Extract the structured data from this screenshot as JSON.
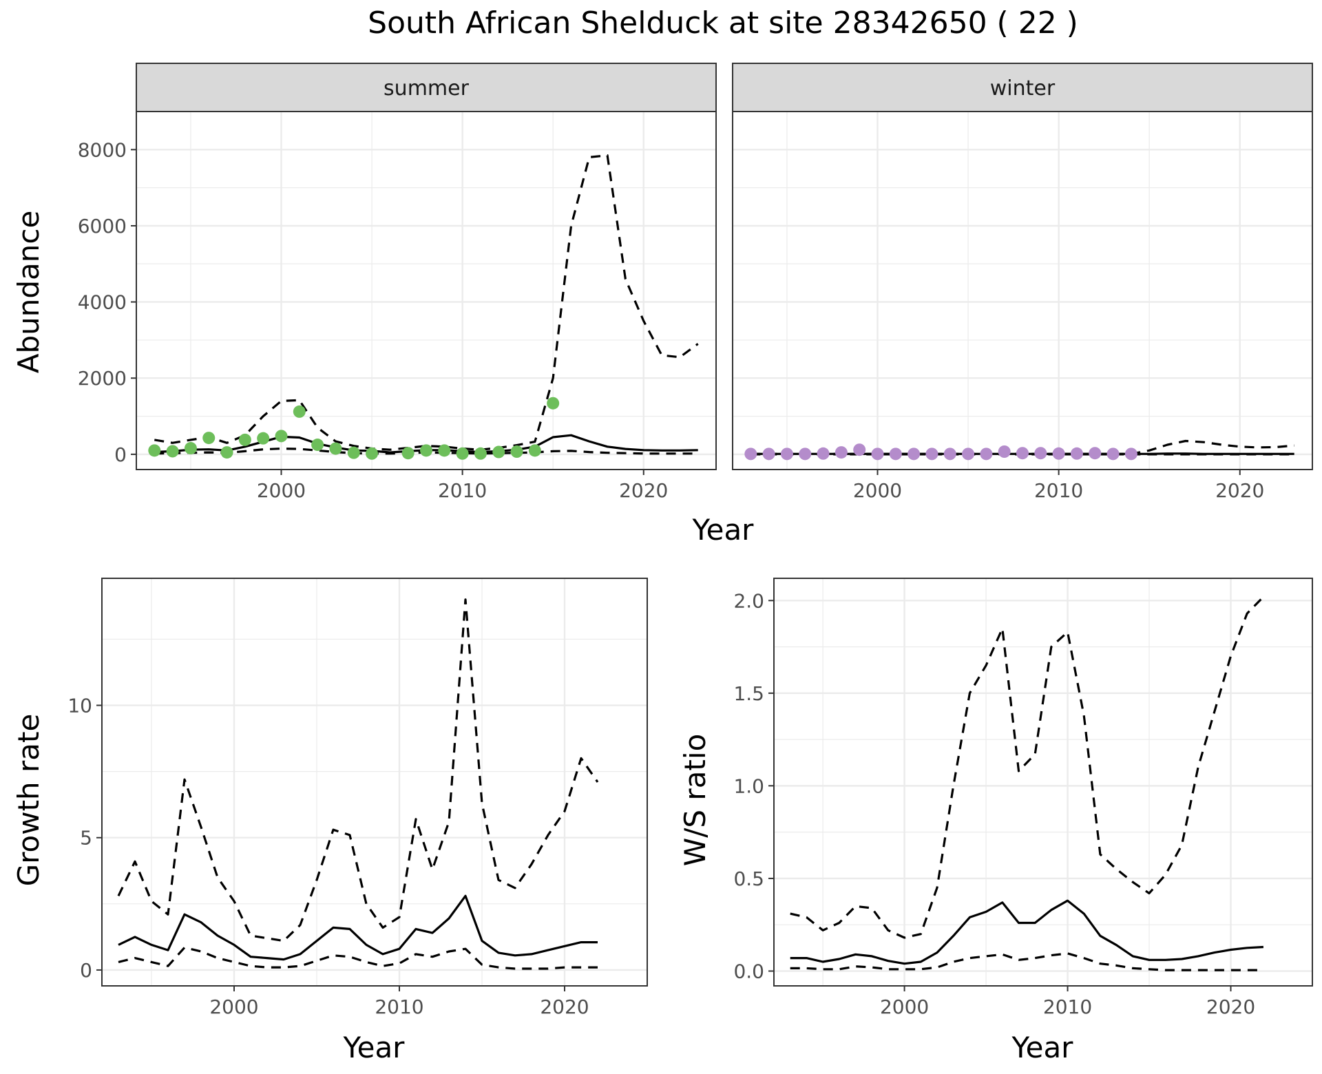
{
  "title": "South African Shelduck at site 28342650 ( 22 )",
  "colors": {
    "summer_points": "#6dbe5a",
    "winter_points": "#b48ccb",
    "line": "#000000",
    "grid": "#ebebeb",
    "strip_bg": "#d9d9d9",
    "panel_border": "#333333"
  },
  "chart_data": [
    {
      "type": "line",
      "title": "",
      "panels": [
        "summer",
        "winter"
      ],
      "xlabel": "Year",
      "ylabel": "Abundance",
      "xlim": [
        1992,
        2024
      ],
      "ylim": [
        -400,
        9000
      ],
      "xticks": [
        2000,
        2010,
        2020
      ],
      "yticks": [
        0,
        2000,
        4000,
        6000,
        8000
      ],
      "x": [
        1993,
        1994,
        1995,
        1996,
        1997,
        1998,
        1999,
        2000,
        2001,
        2002,
        2003,
        2004,
        2005,
        2006,
        2007,
        2008,
        2009,
        2010,
        2011,
        2012,
        2013,
        2014,
        2015,
        2016,
        2017,
        2018,
        2019,
        2020,
        2021,
        2022,
        2023
      ],
      "summer": {
        "estimate": [
          60,
          80,
          120,
          130,
          100,
          200,
          330,
          460,
          440,
          280,
          180,
          100,
          90,
          50,
          80,
          110,
          110,
          80,
          60,
          80,
          120,
          200,
          450,
          500,
          340,
          200,
          140,
          110,
          100,
          100,
          110
        ],
        "lower": [
          20,
          30,
          40,
          50,
          40,
          80,
          130,
          150,
          140,
          100,
          60,
          30,
          20,
          20,
          30,
          50,
          40,
          30,
          20,
          30,
          40,
          50,
          80,
          90,
          60,
          40,
          30,
          20,
          20,
          20,
          20
        ],
        "upper": [
          380,
          300,
          380,
          450,
          300,
          500,
          1000,
          1400,
          1420,
          700,
          340,
          220,
          150,
          120,
          170,
          220,
          200,
          150,
          120,
          170,
          240,
          330,
          2000,
          6000,
          7800,
          7850,
          4600,
          3500,
          2600,
          2550,
          2900
        ],
        "obs_x": [
          1993,
          1994,
          1995,
          1996,
          1997,
          1998,
          1999,
          2000,
          2001,
          2002,
          2003,
          2004,
          2005,
          2007,
          2008,
          2009,
          2010,
          2011,
          2012,
          2013,
          2014,
          2015
        ],
        "obs_y": [
          100,
          80,
          160,
          430,
          50,
          380,
          420,
          480,
          1120,
          250,
          150,
          40,
          20,
          30,
          100,
          100,
          20,
          20,
          60,
          70,
          100,
          1340
        ]
      },
      "winter": {
        "estimate": [
          10,
          10,
          10,
          10,
          10,
          10,
          10,
          10,
          10,
          10,
          10,
          10,
          10,
          10,
          10,
          10,
          10,
          10,
          10,
          10,
          10,
          10,
          10,
          20,
          20,
          10,
          10,
          10,
          10,
          10,
          10
        ],
        "lower": [
          0,
          0,
          0,
          0,
          0,
          0,
          0,
          0,
          0,
          0,
          0,
          0,
          0,
          0,
          0,
          0,
          0,
          0,
          0,
          0,
          0,
          0,
          0,
          0,
          0,
          0,
          0,
          0,
          0,
          0,
          0
        ],
        "upper": [
          10,
          10,
          10,
          10,
          10,
          10,
          10,
          10,
          10,
          10,
          10,
          10,
          10,
          10,
          10,
          10,
          10,
          10,
          10,
          10,
          10,
          10,
          100,
          250,
          350,
          320,
          250,
          200,
          180,
          190,
          230
        ],
        "obs_x": [
          1993,
          1994,
          1995,
          1996,
          1997,
          1998,
          1999,
          2000,
          2001,
          2002,
          2003,
          2004,
          2005,
          2006,
          2007,
          2008,
          2009,
          2010,
          2011,
          2012,
          2013,
          2014
        ],
        "obs_y": [
          10,
          10,
          10,
          10,
          20,
          50,
          120,
          10,
          10,
          10,
          10,
          10,
          10,
          10,
          70,
          30,
          30,
          20,
          20,
          30,
          10,
          10
        ]
      }
    },
    {
      "type": "line",
      "title": "",
      "xlabel": "Year",
      "ylabel": "Growth rate",
      "xlim": [
        1992,
        2025
      ],
      "ylim": [
        -0.6,
        14.8
      ],
      "xticks": [
        2000,
        2010,
        2020
      ],
      "yticks": [
        0,
        5,
        10
      ],
      "x": [
        1993,
        1994,
        1995,
        1996,
        1997,
        1998,
        1999,
        2000,
        2001,
        2002,
        2003,
        2004,
        2005,
        2006,
        2007,
        2008,
        2009,
        2010,
        2011,
        2012,
        2013,
        2014,
        2015,
        2016,
        2017,
        2018,
        2019,
        2020,
        2021,
        2022
      ],
      "estimate": [
        0.95,
        1.25,
        0.95,
        0.75,
        2.1,
        1.8,
        1.3,
        0.95,
        0.5,
        0.45,
        0.4,
        0.6,
        1.1,
        1.6,
        1.55,
        0.95,
        0.6,
        0.8,
        1.55,
        1.4,
        1.95,
        2.8,
        1.1,
        0.65,
        0.55,
        0.6,
        0.75,
        0.9,
        1.05,
        1.05
      ],
      "lower": [
        0.3,
        0.45,
        0.3,
        0.15,
        0.85,
        0.7,
        0.45,
        0.3,
        0.15,
        0.1,
        0.1,
        0.15,
        0.35,
        0.55,
        0.5,
        0.3,
        0.15,
        0.25,
        0.6,
        0.5,
        0.7,
        0.8,
        0.2,
        0.1,
        0.05,
        0.05,
        0.05,
        0.1,
        0.1,
        0.1
      ],
      "upper": [
        2.8,
        4.1,
        2.6,
        2.1,
        7.2,
        5.4,
        3.5,
        2.6,
        1.3,
        1.2,
        1.1,
        1.7,
        3.4,
        5.3,
        5.1,
        2.5,
        1.6,
        2.0,
        5.7,
        3.8,
        5.6,
        14.0,
        6.3,
        3.4,
        3.1,
        4.0,
        5.1,
        6.0,
        8.0,
        7.1
      ]
    },
    {
      "type": "line",
      "title": "",
      "xlabel": "Year",
      "ylabel": "W/S ratio",
      "xlim": [
        1992,
        2025
      ],
      "ylim": [
        -0.08,
        2.12
      ],
      "xticks": [
        2000,
        2010,
        2020
      ],
      "yticks": [
        0.0,
        0.5,
        1.0,
        1.5,
        2.0
      ],
      "ytick_labels": [
        "0.0",
        "0.5",
        "1.0",
        "1.5",
        "2.0"
      ],
      "x": [
        1993,
        1994,
        1995,
        1996,
        1997,
        1998,
        1999,
        2000,
        2001,
        2002,
        2003,
        2004,
        2005,
        2006,
        2007,
        2008,
        2009,
        2010,
        2011,
        2012,
        2013,
        2014,
        2015,
        2016,
        2017,
        2018,
        2019,
        2020,
        2021,
        2022
      ],
      "estimate": [
        0.07,
        0.07,
        0.05,
        0.065,
        0.09,
        0.08,
        0.055,
        0.04,
        0.05,
        0.1,
        0.19,
        0.29,
        0.32,
        0.37,
        0.26,
        0.26,
        0.33,
        0.38,
        0.31,
        0.19,
        0.14,
        0.08,
        0.06,
        0.06,
        0.065,
        0.08,
        0.1,
        0.115,
        0.125,
        0.13
      ],
      "lower": [
        0.015,
        0.015,
        0.01,
        0.01,
        0.025,
        0.02,
        0.01,
        0.01,
        0.01,
        0.02,
        0.05,
        0.07,
        0.08,
        0.09,
        0.06,
        0.07,
        0.085,
        0.095,
        0.07,
        0.04,
        0.03,
        0.015,
        0.01,
        0.005,
        0.005,
        0.005,
        0.005,
        0.005,
        0.005,
        0.005
      ],
      "upper": [
        0.31,
        0.29,
        0.22,
        0.26,
        0.35,
        0.34,
        0.22,
        0.18,
        0.2,
        0.45,
        1.0,
        1.5,
        1.65,
        1.85,
        1.08,
        1.17,
        1.75,
        1.83,
        1.38,
        0.63,
        0.55,
        0.48,
        0.42,
        0.52,
        0.68,
        1.1,
        1.4,
        1.7,
        1.93,
        2.02
      ]
    }
  ]
}
